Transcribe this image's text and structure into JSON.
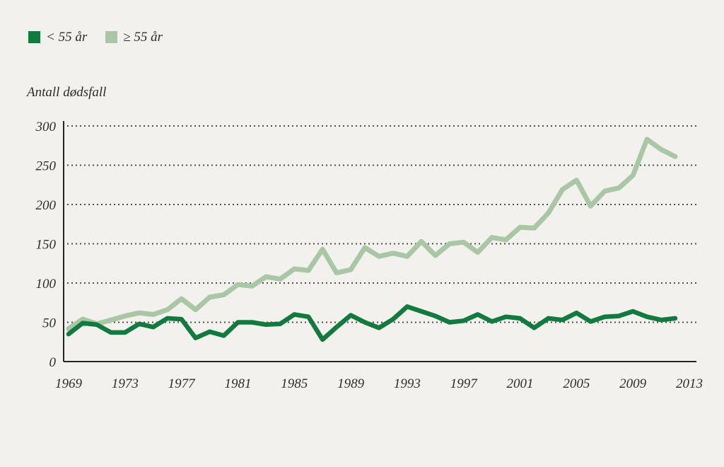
{
  "legend": {
    "items": [
      {
        "label": "< 55 år",
        "color": "#127a3e"
      },
      {
        "label": "≥ 55 år",
        "color": "#a9c7a4"
      }
    ]
  },
  "chart_data": {
    "type": "line",
    "title": "",
    "ylabel": "Antall dødsfall",
    "xlabel": "",
    "grid": "horizontal-dotted",
    "legend_position": "top-left",
    "ylim": [
      0,
      300
    ],
    "xlim": [
      1968.6,
      2013.5
    ],
    "yticks": [
      0,
      50,
      100,
      150,
      200,
      250,
      300
    ],
    "xticks": [
      1969,
      1973,
      1977,
      1981,
      1985,
      1989,
      1993,
      1997,
      2001,
      2005,
      2009,
      2013
    ],
    "x": [
      1969,
      1970,
      1971,
      1972,
      1973,
      1974,
      1975,
      1976,
      1977,
      1978,
      1979,
      1980,
      1981,
      1982,
      1983,
      1984,
      1985,
      1986,
      1987,
      1988,
      1989,
      1990,
      1991,
      1992,
      1993,
      1994,
      1995,
      1996,
      1997,
      1998,
      1999,
      2000,
      2001,
      2002,
      2003,
      2004,
      2005,
      2006,
      2007,
      2008,
      2009,
      2010,
      2011,
      2012
    ],
    "series": [
      {
        "name": "< 55 år",
        "color": "#127a3e",
        "values": [
          35,
          49,
          47,
          37,
          37,
          48,
          44,
          55,
          54,
          30,
          38,
          33,
          50,
          50,
          47,
          48,
          60,
          57,
          28,
          44,
          59,
          50,
          43,
          54,
          70,
          64,
          58,
          50,
          52,
          60,
          51,
          57,
          55,
          43,
          55,
          53,
          62,
          51,
          57,
          58,
          64,
          57,
          53,
          55
        ]
      },
      {
        "name": "≥ 55 år",
        "color": "#a9c7a4",
        "values": [
          42,
          54,
          48,
          53,
          58,
          62,
          60,
          66,
          80,
          66,
          82,
          85,
          98,
          96,
          108,
          105,
          118,
          116,
          143,
          113,
          117,
          145,
          134,
          138,
          134,
          153,
          135,
          150,
          152,
          139,
          158,
          155,
          171,
          170,
          189,
          219,
          231,
          198,
          217,
          221,
          237,
          283,
          270,
          261
        ]
      }
    ],
    "colors": {
      "background": "#f2f1ee",
      "axis": "#262626",
      "gridline": "#4d4d4d",
      "text": "#2d2c2a"
    }
  }
}
